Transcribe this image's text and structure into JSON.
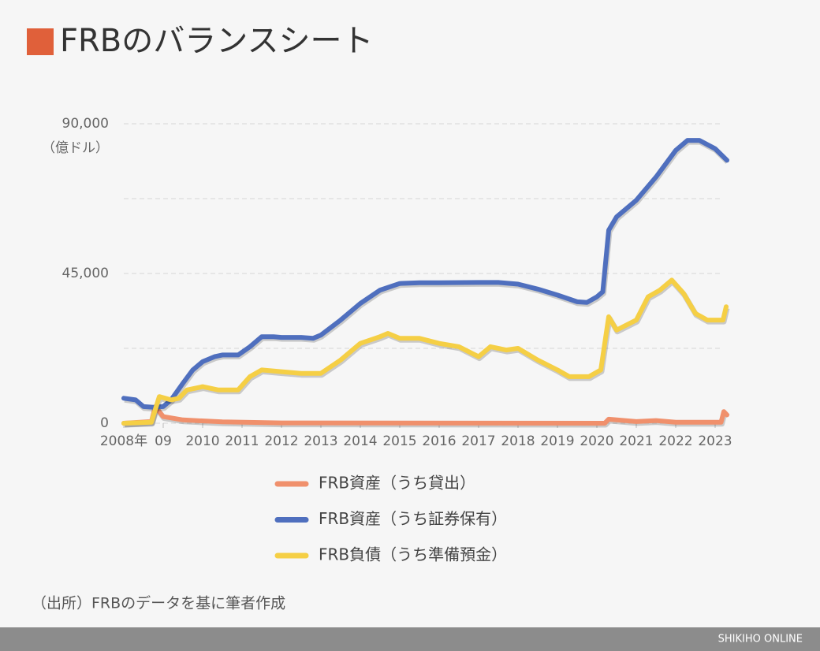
{
  "chart_data": {
    "type": "line",
    "title": "FRBのバランスシート",
    "y_unit": "（億ドル）",
    "source": "（出所）FRBのデータを基に筆者作成",
    "footer": "SHIKIHO ONLINE",
    "xlim": [
      2008,
      2023.3
    ],
    "ylim": [
      0,
      90000
    ],
    "xticks": [
      {
        "value": 2008,
        "label": "2008年"
      },
      {
        "value": 2009,
        "label": "09"
      },
      2010,
      2011,
      2012,
      2013,
      2014,
      2015,
      2016,
      2017,
      2018,
      2019,
      2020,
      2021,
      2022,
      2023
    ],
    "yticks": [
      0,
      {
        "value": 45000,
        "label": "45,000"
      },
      {
        "value": 90000,
        "label": "90,000"
      }
    ],
    "minor_gridlines": [
      22500,
      67500
    ],
    "grid": true,
    "series": [
      {
        "name": "FRB資産（うち貸出）",
        "color": "#f0906c",
        "x": [
          2008,
          2008.7,
          2008.8,
          2009,
          2009.5,
          2010.5,
          2012,
          2020.2,
          2020.3,
          2021,
          2021.5,
          2022,
          2023.15,
          2023.22,
          2023.3
        ],
        "values": [
          0,
          500,
          5000,
          2000,
          1000,
          400,
          100,
          0,
          1200,
          500,
          800,
          300,
          300,
          3500,
          2500
        ]
      },
      {
        "name": "FRB資産（うち証券保有）",
        "color": "#4f6fbe",
        "x": [
          2008,
          2008.3,
          2008.5,
          2008.75,
          2009,
          2009.2,
          2009.5,
          2009.75,
          2010,
          2010.3,
          2010.5,
          2010.9,
          2011.2,
          2011.5,
          2011.8,
          2012,
          2012.5,
          2012.8,
          2013,
          2013.5,
          2014,
          2014.5,
          2015,
          2015.5,
          2016,
          2017,
          2017.5,
          2018,
          2018.5,
          2019,
          2019.5,
          2019.75,
          2020,
          2020.15,
          2020.3,
          2020.5,
          2021,
          2021.5,
          2022,
          2022.3,
          2022.6,
          2023,
          2023.3
        ],
        "values": [
          7500,
          7000,
          5000,
          4800,
          5000,
          7000,
          12000,
          16000,
          18500,
          20000,
          20500,
          20500,
          23000,
          26000,
          26000,
          25800,
          25800,
          25500,
          26500,
          31000,
          36000,
          40000,
          42000,
          42200,
          42200,
          42300,
          42300,
          41800,
          40300,
          38500,
          36500,
          36300,
          38000,
          39500,
          58000,
          62000,
          67000,
          74000,
          82000,
          85000,
          85000,
          82500,
          79000
        ]
      },
      {
        "name": "FRB負債（うち準備預金）",
        "color": "#f5cf45",
        "x": [
          2008,
          2008.7,
          2008.9,
          2009.2,
          2009.4,
          2009.6,
          2010,
          2010.4,
          2010.9,
          2011.2,
          2011.5,
          2012,
          2012.5,
          2013,
          2013.5,
          2014,
          2014.5,
          2014.7,
          2015,
          2015.5,
          2016,
          2016.5,
          2017,
          2017.3,
          2017.7,
          2018,
          2018.5,
          2019,
          2019.3,
          2019.8,
          2020.1,
          2020.3,
          2020.5,
          2021,
          2021.3,
          2021.6,
          2021.9,
          2022.2,
          2022.5,
          2022.8,
          2023.2,
          2023.28
        ],
        "values": [
          0,
          300,
          8000,
          7000,
          7500,
          10000,
          11000,
          10000,
          10000,
          14000,
          16000,
          15500,
          15000,
          15000,
          19000,
          24000,
          26000,
          27000,
          25500,
          25500,
          24000,
          23000,
          20000,
          23000,
          22000,
          22500,
          19000,
          16000,
          14000,
          14000,
          16000,
          32000,
          28000,
          31000,
          38000,
          40000,
          43000,
          39000,
          33000,
          31000,
          31000,
          35000
        ]
      }
    ]
  }
}
